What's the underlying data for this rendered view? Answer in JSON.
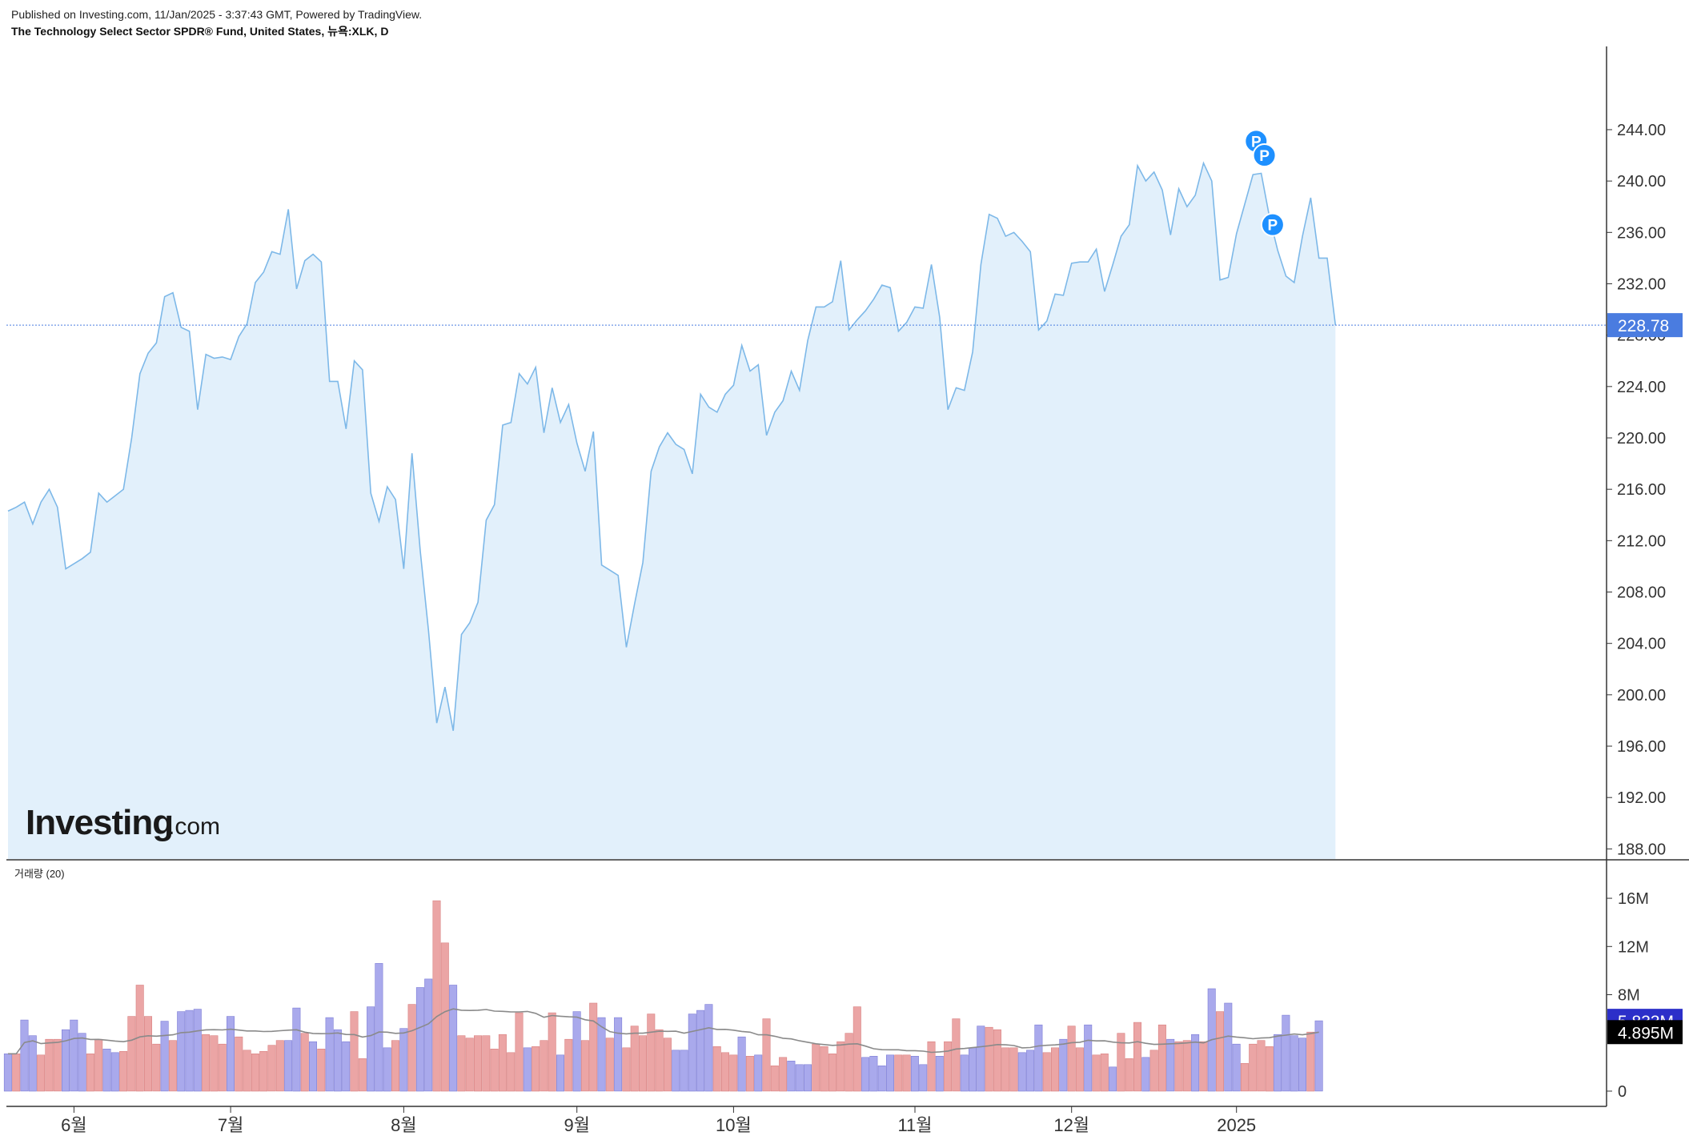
{
  "header": {
    "published": "Published on Investing.com, 11/Jan/2025 - 3:37:43 GMT, Powered by TradingView.",
    "title": "The Technology Select Sector SPDR® Fund, United States, 뉴욕:XLK, D"
  },
  "logo": {
    "brand": "Investing",
    "suffix": ".com"
  },
  "colors": {
    "line": "#7db8e8",
    "area": "#e2f0fb",
    "last_price_bg": "#4a7ce0",
    "vol_up": "#a9a9ec",
    "vol_down": "#eba5a5",
    "vol_ma": "#8a8a8a",
    "vol_badge1_bg": "#2c2fc9",
    "vol_badge2_bg": "#000000",
    "event_marker": "#1e90ff"
  },
  "chart_data": [
    {
      "type": "area",
      "name": "price",
      "ylim": [
        187.4,
        247.8
      ],
      "yticks": [
        "244.00",
        "240.00",
        "236.00",
        "232.00",
        "228.00",
        "224.00",
        "220.00",
        "216.00",
        "212.00",
        "208.00",
        "204.00",
        "200.00",
        "196.00",
        "192.00",
        "188.00"
      ],
      "xticks": [
        "6월",
        "7월",
        "8월",
        "9월",
        "10월",
        "11월",
        "12월",
        "2025"
      ],
      "xtick_index": [
        8,
        27,
        48,
        69,
        88,
        110,
        129,
        149
      ],
      "last_price": "228.78",
      "event_markers": [
        {
          "label": "P",
          "index": 151,
          "value": 243.1
        },
        {
          "label": "P",
          "index": 152,
          "value": 242.0
        },
        {
          "label": "P",
          "index": 153,
          "value": 236.6
        }
      ],
      "values": [
        214.3,
        214.6,
        215.0,
        213.3,
        215.0,
        216.0,
        214.6,
        209.8,
        210.2,
        210.6,
        211.1,
        215.7,
        215.0,
        215.5,
        216.0,
        220.0,
        225.0,
        226.6,
        227.4,
        231.0,
        231.3,
        228.6,
        228.3,
        222.2,
        226.5,
        226.2,
        226.3,
        226.1,
        227.9,
        228.9,
        232.1,
        232.9,
        234.5,
        234.3,
        237.8,
        231.6,
        233.8,
        234.3,
        233.7,
        224.4,
        224.4,
        220.7,
        226.0,
        225.3,
        215.7,
        213.5,
        216.2,
        215.2,
        209.8,
        218.8,
        211.2,
        205.0,
        197.8,
        200.6,
        197.2,
        204.7,
        205.6,
        207.2,
        213.6,
        214.8,
        221.0,
        221.2,
        225.0,
        224.2,
        225.5,
        220.4,
        223.9,
        221.2,
        222.6,
        219.6,
        217.4,
        220.5,
        210.1,
        209.7,
        209.3,
        203.7,
        207.1,
        210.3,
        217.4,
        219.3,
        220.4,
        219.5,
        219.1,
        217.2,
        223.4,
        222.4,
        222.0,
        223.4,
        224.1,
        227.2,
        225.2,
        225.7,
        220.2,
        222.0,
        222.9,
        225.2,
        223.7,
        227.6,
        230.2,
        230.2,
        230.6,
        233.8,
        228.4,
        229.2,
        229.9,
        230.8,
        231.9,
        231.7,
        228.3,
        229.0,
        230.2,
        230.1,
        233.5,
        229.4,
        222.2,
        223.9,
        223.7,
        226.7,
        233.5,
        237.4,
        237.1,
        235.7,
        236.0,
        235.3,
        234.5,
        228.4,
        229.1,
        231.2,
        231.1,
        233.6,
        233.7,
        233.7,
        234.7,
        231.4,
        233.5,
        235.7,
        236.6,
        241.2,
        240.0,
        240.7,
        239.3,
        235.8,
        239.4,
        238.0,
        238.9,
        241.4,
        240.0,
        232.3,
        232.5,
        235.9,
        238.2,
        240.5,
        240.6,
        237.2,
        234.6,
        232.6,
        232.1,
        235.7,
        238.7,
        234.0,
        234.0,
        228.78
      ]
    },
    {
      "type": "bar",
      "name": "거래량 (20)",
      "ylim": [
        -0.8,
        17.2
      ],
      "yticks": [
        "16M",
        "12M",
        "8M",
        "0"
      ],
      "ytick_values": [
        16,
        12,
        8,
        0
      ],
      "last_volume": "5.833M",
      "volume_ma_last": "4.895M",
      "volumes": [
        3.1,
        3.1,
        5.9,
        4.6,
        3.0,
        4.3,
        4.3,
        5.1,
        5.9,
        4.8,
        3.1,
        4.3,
        3.5,
        3.2,
        3.3,
        6.2,
        8.8,
        6.2,
        3.9,
        5.8,
        4.2,
        6.6,
        6.7,
        6.8,
        4.7,
        4.6,
        3.9,
        6.2,
        4.5,
        3.4,
        3.1,
        3.3,
        3.8,
        4.2,
        4.2,
        6.9,
        4.8,
        4.1,
        3.5,
        6.1,
        5.1,
        4.1,
        6.6,
        2.7,
        7.0,
        10.6,
        3.6,
        4.2,
        5.2,
        7.2,
        8.6,
        9.3,
        15.8,
        12.3,
        8.8,
        4.6,
        4.4,
        4.6,
        4.6,
        3.5,
        4.7,
        3.2,
        6.5,
        3.6,
        3.7,
        4.2,
        6.5,
        3.0,
        4.3,
        6.6,
        4.2,
        7.3,
        6.1,
        4.4,
        6.1,
        3.6,
        5.4,
        4.6,
        6.4,
        5.1,
        4.4,
        3.4,
        3.4,
        6.4,
        6.7,
        7.2,
        3.7,
        3.2,
        3.0,
        4.5,
        2.9,
        3.0,
        6.0,
        2.1,
        2.8,
        2.5,
        2.2,
        2.2,
        3.9,
        3.7,
        3.1,
        4.1,
        4.8,
        7.0,
        2.8,
        2.9,
        2.1,
        3.0,
        3.0,
        3.0,
        2.9,
        2.2,
        4.1,
        2.9,
        4.1,
        6.0,
        3.0,
        3.6,
        5.4,
        5.3,
        5.1,
        3.6,
        3.6,
        3.2,
        3.4,
        5.5,
        3.2,
        3.6,
        4.3,
        5.4,
        3.6,
        5.5,
        3.0,
        3.1,
        2.0,
        4.8,
        2.7,
        5.7,
        2.8,
        3.4,
        5.5,
        4.3,
        4.1,
        4.2,
        4.7,
        4.1,
        8.5,
        6.6,
        7.3,
        3.9,
        2.3,
        3.9,
        4.2,
        3.7,
        4.7,
        6.3,
        4.6,
        4.4,
        4.9,
        5.833
      ],
      "up": [
        true,
        false,
        true,
        true,
        false,
        false,
        false,
        true,
        true,
        true,
        false,
        false,
        true,
        true,
        false,
        false,
        false,
        false,
        false,
        true,
        false,
        true,
        true,
        true,
        false,
        false,
        false,
        true,
        false,
        false,
        false,
        false,
        false,
        false,
        true,
        true,
        false,
        true,
        false,
        true,
        true,
        true,
        false,
        false,
        true,
        true,
        true,
        false,
        true,
        false,
        true,
        true,
        false,
        false,
        true,
        false,
        false,
        false,
        false,
        false,
        false,
        false,
        false,
        true,
        false,
        false,
        false,
        true,
        false,
        true,
        false,
        false,
        true,
        false,
        true,
        false,
        false,
        false,
        false,
        false,
        false,
        true,
        true,
        true,
        true,
        true,
        false,
        false,
        false,
        true,
        false,
        true,
        false,
        false,
        false,
        true,
        true,
        true,
        false,
        false,
        false,
        false,
        false,
        false,
        true,
        true,
        true,
        true,
        false,
        false,
        true,
        true,
        false,
        true,
        false,
        false,
        true,
        true,
        true,
        false,
        false,
        false,
        false,
        true,
        true,
        true,
        false,
        false,
        true,
        false,
        false,
        true,
        false,
        false,
        true,
        false,
        false,
        false,
        true,
        false,
        false,
        true,
        false,
        false,
        true,
        false,
        true,
        false,
        true,
        true,
        false,
        false,
        false,
        false,
        true,
        true,
        true,
        true,
        false,
        true,
        true,
        true
      ]
    }
  ]
}
